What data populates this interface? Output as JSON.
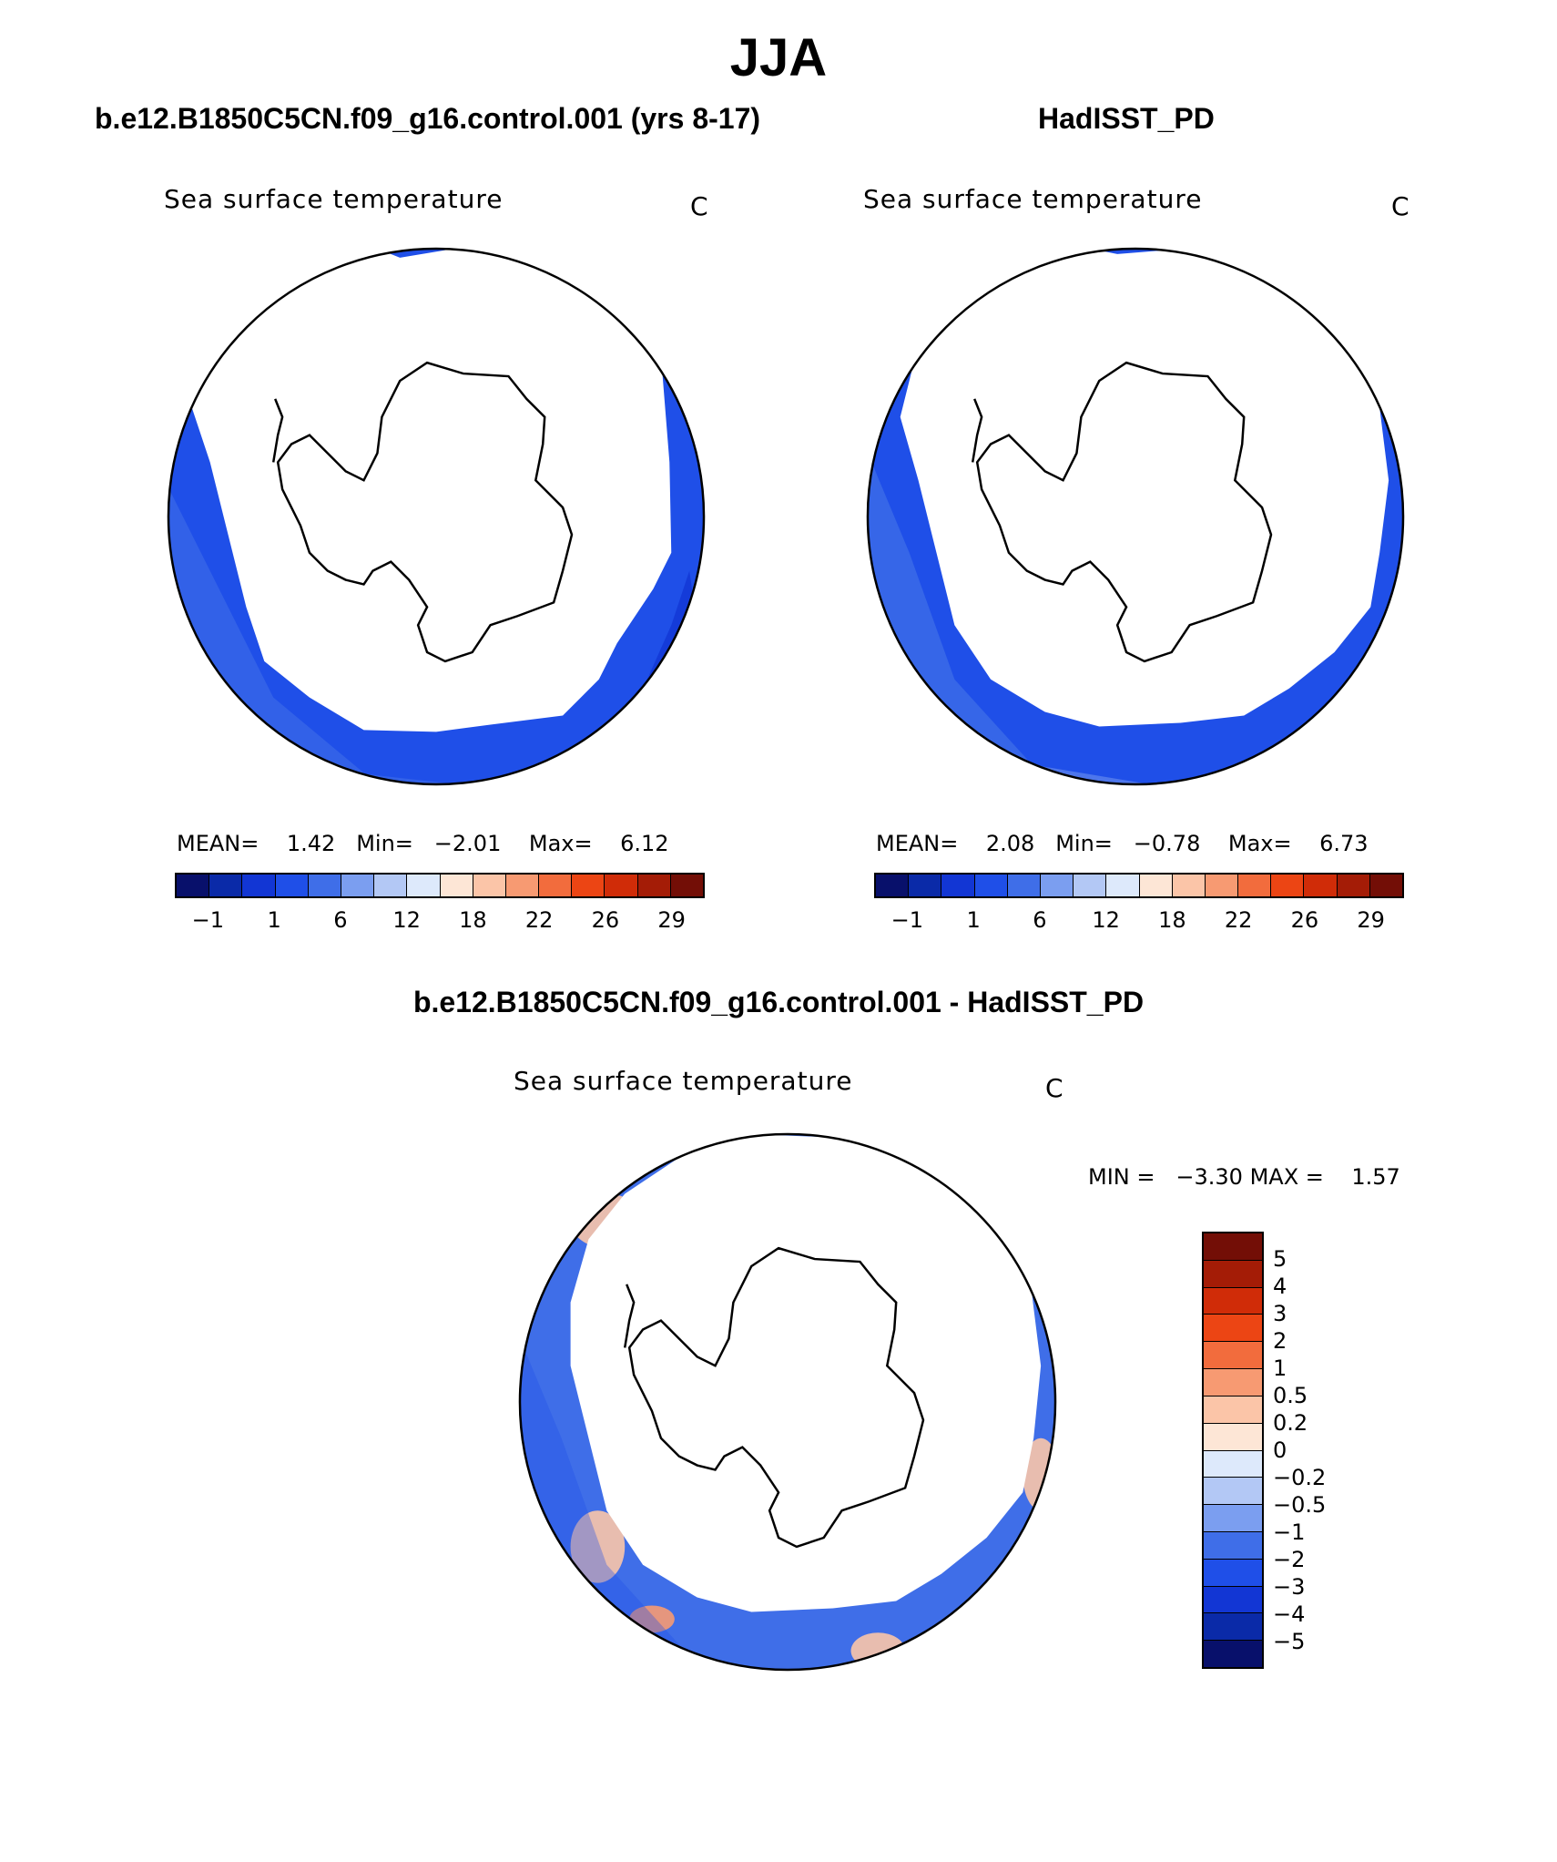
{
  "figure": {
    "title": "JJA",
    "panel_left_title": "b.e12.B1850C5CN.f09_g16.control.001 (yrs 8-17)",
    "panel_right_title": "HadISST_PD",
    "panel_diff_title": "b.e12.B1850C5CN.f09_g16.control.001 - HadISST_PD"
  },
  "panels": {
    "left": {
      "variable": "Sea surface temperature",
      "units": "C",
      "mean_label": "MEAN=",
      "mean_value": "1.42",
      "min_label": "Min=",
      "min_value": "−2.01",
      "max_label": "Max=",
      "max_value": "6.12"
    },
    "right": {
      "variable": "Sea surface temperature",
      "units": "C",
      "mean_label": "MEAN=",
      "mean_value": "2.08",
      "min_label": "Min=",
      "min_value": "−0.78",
      "max_label": "Max=",
      "max_value": "6.73"
    },
    "diff": {
      "variable": "Sea surface temperature",
      "units": "C",
      "min_label": "MIN =",
      "min_value": "−3.30",
      "max_label": "MAX =",
      "max_value": "1.57"
    }
  },
  "abs_colorbar": {
    "tick_labels": [
      "−1",
      "1",
      "6",
      "12",
      "18",
      "22",
      "26",
      "29"
    ],
    "colors": [
      "#08106b",
      "#0a2aa8",
      "#1236d4",
      "#1f4fe8",
      "#3f6ee8",
      "#7b9ef0",
      "#b3c8f5",
      "#dde9fb",
      "#fde6d6",
      "#fbc5a8",
      "#f79a72",
      "#f26c3d",
      "#ec4514",
      "#d02c08",
      "#a41c06",
      "#730e06"
    ]
  },
  "diff_colorbar": {
    "tick_labels": [
      "5",
      "4",
      "3",
      "2",
      "1",
      "0.5",
      "0.2",
      "0",
      "−0.2",
      "−0.5",
      "−1",
      "−2",
      "−3",
      "−4",
      "−5"
    ],
    "colors": [
      "#730e06",
      "#a41c06",
      "#d02c08",
      "#ec4514",
      "#f26c3d",
      "#f79a72",
      "#fbc5a8",
      "#fde6d6",
      "#dde9fb",
      "#b3c8f5",
      "#7b9ef0",
      "#3f6ee8",
      "#1f4fe8",
      "#1236d4",
      "#0a2aa8",
      "#08106b"
    ]
  }
}
